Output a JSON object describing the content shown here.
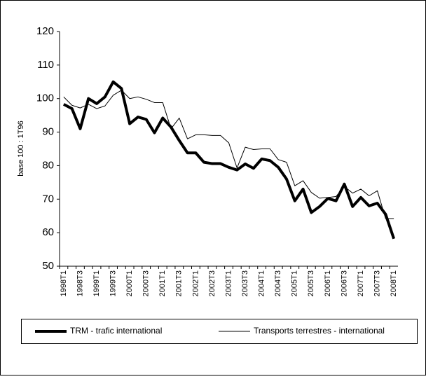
{
  "chart_data": {
    "type": "line",
    "y_label": "base 100 : 1T96",
    "categories": [
      "1998T1",
      null,
      "1998T3",
      null,
      "1999T1",
      null,
      "1999T3",
      null,
      "2000T1",
      null,
      "2000T3",
      null,
      "2001T1",
      null,
      "2001T3",
      null,
      "2002T1",
      null,
      "2002T3",
      null,
      "2003T1",
      null,
      "2003T3",
      null,
      "2004T1",
      null,
      "2004T3",
      null,
      "2005T1",
      null,
      "2005T3",
      null,
      "2006T1",
      null,
      "2006T3",
      null,
      "2007T1",
      null,
      "2007T3",
      null,
      "2008T1"
    ],
    "series": [
      {
        "name": "TRM - trafic international",
        "color": "#000000",
        "width": 4,
        "values": [
          98.3,
          97,
          91,
          100,
          98.5,
          100.5,
          105,
          103,
          92.5,
          94.5,
          93.8,
          89.8,
          94.2,
          91.5,
          87.5,
          83.8,
          83.8,
          81,
          80.6,
          80.6,
          79.5,
          78.7,
          80.5,
          79.2,
          82,
          81.5,
          79.5,
          76,
          69.5,
          73,
          66,
          67.8,
          70.2,
          69.5,
          74.5,
          67.8,
          70.5,
          68,
          68.8,
          65.5,
          58.2
        ]
      },
      {
        "name": "Transports terrestres - international",
        "color": "#000000",
        "width": 1,
        "values": [
          100.5,
          98,
          97.2,
          98.3,
          97,
          97.8,
          101,
          102.5,
          100,
          100.5,
          99.8,
          98.8,
          98.8,
          91,
          94.2,
          88,
          89.2,
          89.2,
          89,
          89,
          86.8,
          79.3,
          85.5,
          84.8,
          85,
          85,
          81.8,
          81,
          74,
          75.5,
          72,
          70.3,
          70.5,
          70.8,
          73.8,
          71.8,
          73,
          71,
          72.5,
          64.2,
          64.2
        ]
      }
    ],
    "ylim": [
      50,
      120
    ],
    "yticks": [
      50,
      60,
      70,
      80,
      90,
      100,
      110,
      120
    ],
    "grid": false,
    "legend": "bottom"
  }
}
